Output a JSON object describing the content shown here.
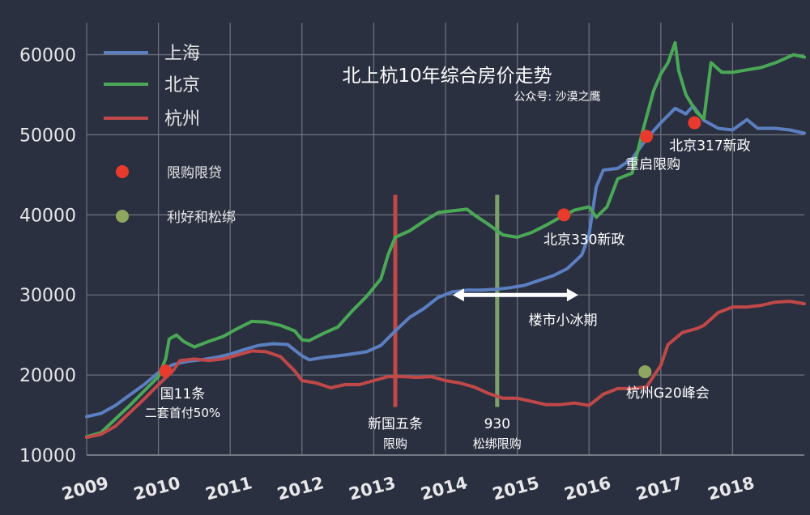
{
  "chart_data": {
    "type": "line",
    "title": "北上杭10年综合房价走势",
    "subtitle": "公众号: 沙漠之鹰",
    "x_ticks": [
      "2009",
      "2010",
      "2011",
      "2012",
      "2013",
      "2014",
      "2015",
      "2016",
      "2017",
      "2018"
    ],
    "y_ticks": [
      10000,
      20000,
      30000,
      40000,
      50000,
      60000
    ],
    "xlim": [
      2009,
      2019.0
    ],
    "ylim": [
      10000,
      64000
    ],
    "grid": true,
    "legend_placement": "top-left",
    "series": [
      {
        "name": "上海",
        "color": "#5b7fc0",
        "points": [
          [
            2009.0,
            14800
          ],
          [
            2009.2,
            15200
          ],
          [
            2009.4,
            16200
          ],
          [
            2009.6,
            17500
          ],
          [
            2009.8,
            18800
          ],
          [
            2010.0,
            20300
          ],
          [
            2010.2,
            21300
          ],
          [
            2010.4,
            21700
          ],
          [
            2010.6,
            21900
          ],
          [
            2010.8,
            22200
          ],
          [
            2011.0,
            22600
          ],
          [
            2011.2,
            23200
          ],
          [
            2011.4,
            23700
          ],
          [
            2011.6,
            23900
          ],
          [
            2011.8,
            23800
          ],
          [
            2012.0,
            22400
          ],
          [
            2012.1,
            21900
          ],
          [
            2012.3,
            22200
          ],
          [
            2012.6,
            22500
          ],
          [
            2012.9,
            22900
          ],
          [
            2013.1,
            23700
          ],
          [
            2013.3,
            25500
          ],
          [
            2013.5,
            27200
          ],
          [
            2013.7,
            28300
          ],
          [
            2013.9,
            29700
          ],
          [
            2014.1,
            30400
          ],
          [
            2014.3,
            30600
          ],
          [
            2014.5,
            30600
          ],
          [
            2014.7,
            30700
          ],
          [
            2014.9,
            30900
          ],
          [
            2015.1,
            31200
          ],
          [
            2015.3,
            31800
          ],
          [
            2015.5,
            32400
          ],
          [
            2015.7,
            33300
          ],
          [
            2015.9,
            35000
          ],
          [
            2016.0,
            37500
          ],
          [
            2016.1,
            43500
          ],
          [
            2016.2,
            45600
          ],
          [
            2016.4,
            45800
          ],
          [
            2016.6,
            47000
          ],
          [
            2016.8,
            49500
          ],
          [
            2017.0,
            51500
          ],
          [
            2017.2,
            53300
          ],
          [
            2017.35,
            52600
          ],
          [
            2017.45,
            53600
          ],
          [
            2017.6,
            51800
          ],
          [
            2017.8,
            50800
          ],
          [
            2018.0,
            50600
          ],
          [
            2018.2,
            51900
          ],
          [
            2018.35,
            50800
          ],
          [
            2018.6,
            50800
          ],
          [
            2018.8,
            50600
          ],
          [
            2019.0,
            50200
          ]
        ]
      },
      {
        "name": "北京",
        "color": "#4aa856",
        "points": [
          [
            2009.0,
            12300
          ],
          [
            2009.2,
            12800
          ],
          [
            2009.4,
            14500
          ],
          [
            2009.6,
            16200
          ],
          [
            2009.8,
            18000
          ],
          [
            2010.0,
            19800
          ],
          [
            2010.1,
            22000
          ],
          [
            2010.15,
            24500
          ],
          [
            2010.25,
            25000
          ],
          [
            2010.35,
            24200
          ],
          [
            2010.5,
            23500
          ],
          [
            2010.7,
            24200
          ],
          [
            2010.9,
            24800
          ],
          [
            2011.1,
            25800
          ],
          [
            2011.3,
            26700
          ],
          [
            2011.5,
            26600
          ],
          [
            2011.7,
            26200
          ],
          [
            2011.9,
            25500
          ],
          [
            2012.0,
            24400
          ],
          [
            2012.1,
            24300
          ],
          [
            2012.3,
            25200
          ],
          [
            2012.5,
            26000
          ],
          [
            2012.7,
            28000
          ],
          [
            2012.9,
            29800
          ],
          [
            2013.1,
            32000
          ],
          [
            2013.2,
            35000
          ],
          [
            2013.3,
            37200
          ],
          [
            2013.5,
            38000
          ],
          [
            2013.7,
            39200
          ],
          [
            2013.9,
            40300
          ],
          [
            2014.1,
            40500
          ],
          [
            2014.3,
            40700
          ],
          [
            2014.4,
            40000
          ],
          [
            2014.6,
            38800
          ],
          [
            2014.8,
            37500
          ],
          [
            2015.0,
            37200
          ],
          [
            2015.2,
            37800
          ],
          [
            2015.4,
            38700
          ],
          [
            2015.6,
            39700
          ],
          [
            2015.8,
            40600
          ],
          [
            2016.0,
            41000
          ],
          [
            2016.1,
            39700
          ],
          [
            2016.25,
            41000
          ],
          [
            2016.4,
            44500
          ],
          [
            2016.6,
            45200
          ],
          [
            2016.75,
            50500
          ],
          [
            2016.9,
            55500
          ],
          [
            2017.0,
            57600
          ],
          [
            2017.1,
            59000
          ],
          [
            2017.2,
            61500
          ],
          [
            2017.25,
            58000
          ],
          [
            2017.35,
            55000
          ],
          [
            2017.5,
            52800
          ],
          [
            2017.6,
            52000
          ],
          [
            2017.7,
            59000
          ],
          [
            2017.85,
            57800
          ],
          [
            2018.0,
            57800
          ],
          [
            2018.2,
            58100
          ],
          [
            2018.4,
            58400
          ],
          [
            2018.6,
            59000
          ],
          [
            2018.75,
            59600
          ],
          [
            2018.85,
            60000
          ],
          [
            2018.95,
            59800
          ],
          [
            2019.0,
            59700
          ]
        ]
      },
      {
        "name": "杭州",
        "color": "#c04848",
        "points": [
          [
            2009.0,
            12200
          ],
          [
            2009.2,
            12600
          ],
          [
            2009.4,
            13600
          ],
          [
            2009.6,
            15300
          ],
          [
            2009.8,
            17000
          ],
          [
            2010.0,
            18800
          ],
          [
            2010.2,
            20500
          ],
          [
            2010.3,
            21800
          ],
          [
            2010.5,
            22000
          ],
          [
            2010.7,
            21800
          ],
          [
            2010.9,
            22000
          ],
          [
            2011.1,
            22500
          ],
          [
            2011.3,
            23000
          ],
          [
            2011.5,
            22900
          ],
          [
            2011.7,
            22300
          ],
          [
            2011.9,
            20500
          ],
          [
            2012.0,
            19300
          ],
          [
            2012.2,
            19000
          ],
          [
            2012.4,
            18400
          ],
          [
            2012.6,
            18800
          ],
          [
            2012.8,
            18800
          ],
          [
            2013.0,
            19300
          ],
          [
            2013.2,
            19800
          ],
          [
            2013.4,
            19800
          ],
          [
            2013.6,
            19700
          ],
          [
            2013.8,
            19800
          ],
          [
            2014.0,
            19300
          ],
          [
            2014.2,
            19000
          ],
          [
            2014.4,
            18500
          ],
          [
            2014.6,
            17700
          ],
          [
            2014.8,
            17100
          ],
          [
            2015.0,
            17100
          ],
          [
            2015.2,
            16700
          ],
          [
            2015.4,
            16300
          ],
          [
            2015.6,
            16300
          ],
          [
            2015.8,
            16500
          ],
          [
            2016.0,
            16200
          ],
          [
            2016.2,
            17600
          ],
          [
            2016.4,
            18300
          ],
          [
            2016.6,
            18300
          ],
          [
            2016.8,
            18500
          ],
          [
            2017.0,
            21200
          ],
          [
            2017.1,
            23800
          ],
          [
            2017.3,
            25300
          ],
          [
            2017.5,
            25800
          ],
          [
            2017.6,
            26200
          ],
          [
            2017.8,
            27800
          ],
          [
            2018.0,
            28500
          ],
          [
            2018.2,
            28500
          ],
          [
            2018.4,
            28700
          ],
          [
            2018.6,
            29100
          ],
          [
            2018.8,
            29200
          ],
          [
            2019.0,
            28900
          ]
        ]
      }
    ],
    "vertical_markers": [
      {
        "x": 2013.3,
        "y_from": 16000,
        "y_to": 42500,
        "color": "#c04848",
        "label": "新国五条",
        "sublabel": "限购"
      },
      {
        "x": 2014.72,
        "y_from": 16000,
        "y_to": 42500,
        "color": "#7ca06a",
        "label": "930",
        "sublabel": "松绑限购"
      }
    ],
    "range_arrow": {
      "x_from": 2014.1,
      "x_to": 2015.85,
      "y": 30000,
      "label": "楼市小冰期"
    },
    "events": [
      {
        "x": 2010.1,
        "y": 20500,
        "type": "限购限贷",
        "label": "国11条",
        "sublabel": "二套首付50%"
      },
      {
        "x": 2015.65,
        "y": 40000,
        "type": "限购限贷",
        "label": "北京330新政",
        "sublabel": ""
      },
      {
        "x": 2016.8,
        "y": 49800,
        "type": "限购限贷",
        "label": "重启限购",
        "sublabel": ""
      },
      {
        "x": 2017.47,
        "y": 51500,
        "type": "限购限贷",
        "label": "北京317新政",
        "sublabel": ""
      },
      {
        "x": 2016.78,
        "y": 20400,
        "type": "利好和松绑",
        "label": "杭州G20峰会",
        "sublabel": ""
      }
    ],
    "marker_legend": [
      {
        "label": "限购限贷",
        "color": "#e83b2d"
      },
      {
        "label": "利好和松绑",
        "color": "#8fa660"
      }
    ]
  }
}
